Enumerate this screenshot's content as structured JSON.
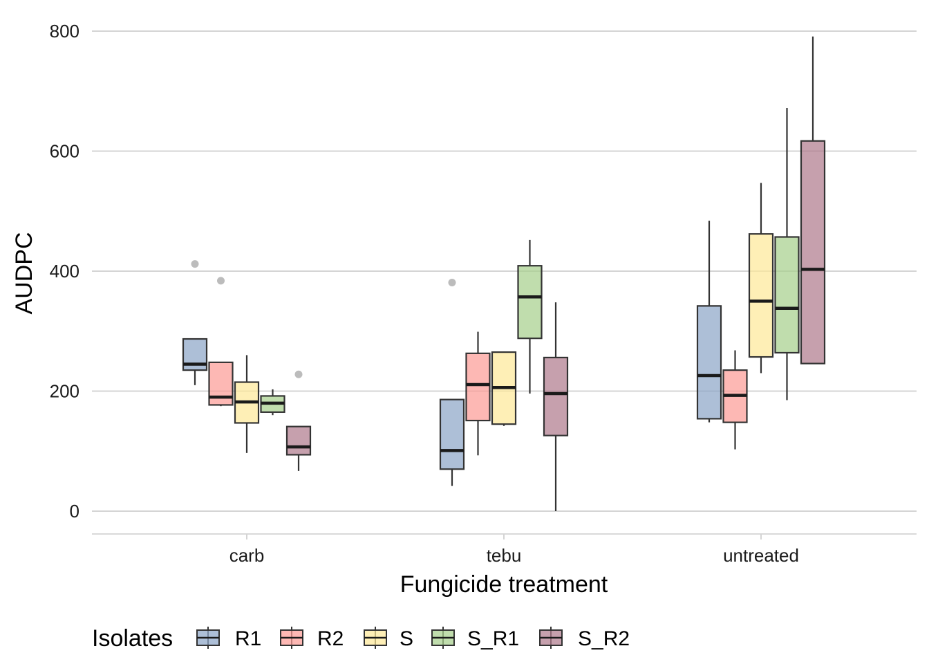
{
  "chart_data": {
    "type": "boxplot",
    "xlabel": "Fungicide treatment",
    "ylabel": "AUDPC",
    "ylim": [
      -38,
      800
    ],
    "yticks": [
      0,
      200,
      400,
      600,
      800
    ],
    "grid": true,
    "categories": [
      "carb",
      "tebu",
      "untreated"
    ],
    "legend": {
      "title": "Isolates",
      "placement": "bottom"
    },
    "series": [
      {
        "name": "R1",
        "color": "#8DA6C8",
        "boxes": [
          {
            "min": 210,
            "q1": 235,
            "median": 245,
            "q3": 287,
            "max": 287,
            "outliers": [
              412
            ]
          },
          {
            "min": 42,
            "q1": 70,
            "median": 101,
            "q3": 186,
            "max": 186,
            "outliers": [
              381
            ]
          },
          {
            "min": 148,
            "q1": 154,
            "median": 226,
            "q3": 342,
            "max": 484,
            "outliers": []
          }
        ]
      },
      {
        "name": "R2",
        "color": "#FC9D97",
        "boxes": [
          {
            "min": 175,
            "q1": 177,
            "median": 190,
            "q3": 248,
            "max": 248,
            "outliers": [
              384
            ]
          },
          {
            "min": 93,
            "q1": 151,
            "median": 211,
            "q3": 263,
            "max": 299,
            "outliers": []
          },
          {
            "min": 103,
            "q1": 148,
            "median": 193,
            "q3": 235,
            "max": 268,
            "outliers": []
          }
        ]
      },
      {
        "name": "S",
        "color": "#FEE99A",
        "boxes": [
          {
            "min": 97,
            "q1": 147,
            "median": 182,
            "q3": 215,
            "max": 260,
            "outliers": []
          },
          {
            "min": 142,
            "q1": 145,
            "median": 206,
            "q3": 265,
            "max": 266,
            "outliers": []
          },
          {
            "min": 230,
            "q1": 257,
            "median": 350,
            "q3": 462,
            "max": 547,
            "outliers": []
          }
        ]
      },
      {
        "name": "S_R1",
        "color": "#A8D08D",
        "boxes": [
          {
            "min": 160,
            "q1": 165,
            "median": 180,
            "q3": 192,
            "max": 203,
            "outliers": []
          },
          {
            "min": 196,
            "q1": 288,
            "median": 357,
            "q3": 409,
            "max": 452,
            "outliers": []
          },
          {
            "min": 185,
            "q1": 264,
            "median": 338,
            "q3": 457,
            "max": 672,
            "outliers": []
          }
        ]
      },
      {
        "name": "S_R2",
        "color": "#B07C8E",
        "boxes": [
          {
            "min": 67,
            "q1": 94,
            "median": 107,
            "q3": 141,
            "max": 141,
            "outliers": [
              228
            ]
          },
          {
            "min": 0,
            "q1": 126,
            "median": 196,
            "q3": 256,
            "max": 348,
            "outliers": []
          },
          {
            "min": 245,
            "q1": 246,
            "median": 403,
            "q3": 617,
            "max": 791,
            "outliers": []
          }
        ]
      }
    ]
  }
}
